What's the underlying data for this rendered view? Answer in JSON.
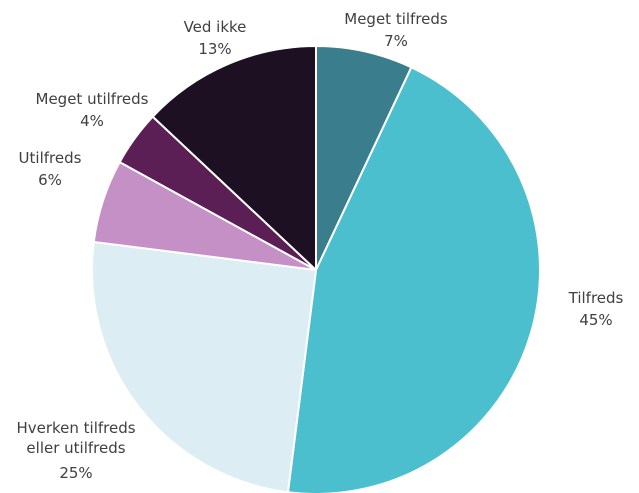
{
  "chart_data": {
    "type": "pie",
    "slices": [
      {
        "label": "Meget tilfreds",
        "value": 7,
        "value_label": "7%",
        "color": "#3a7d8c"
      },
      {
        "label": "Tilfreds",
        "value": 45,
        "value_label": "45%",
        "color": "#4bbfcd"
      },
      {
        "label": "Hverken tilfreds eller utilfreds",
        "label_lines": [
          "Hverken tilfreds",
          "eller utilfreds"
        ],
        "value": 25,
        "value_label": "25%",
        "color": "#dcedf3"
      },
      {
        "label": "Utilfreds",
        "value": 6,
        "value_label": "6%",
        "color": "#c490c6"
      },
      {
        "label": "Meget utilfreds",
        "value": 4,
        "value_label": "4%",
        "color": "#5c1f55"
      },
      {
        "label": "Ved ikke",
        "value": 13,
        "value_label": "13%",
        "color": "#1c1022"
      }
    ],
    "start": "12 o'clock",
    "direction": "clockwise"
  }
}
